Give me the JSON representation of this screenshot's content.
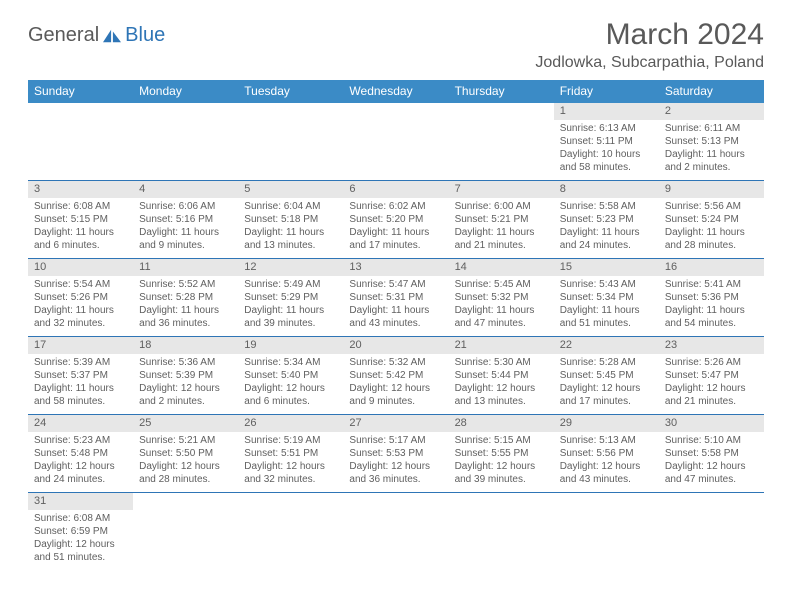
{
  "logo": {
    "part1": "General",
    "part2": "Blue"
  },
  "title": "March 2024",
  "location": "Jodlowka, Subcarpathia, Poland",
  "colors": {
    "header_bg": "#3b8bc6",
    "header_fg": "#ffffff",
    "daynum_bg": "#e7e7e7",
    "text": "#5f5f5f",
    "rule": "#2e75b6",
    "logo_accent": "#2e75b6"
  },
  "weekdays": [
    "Sunday",
    "Monday",
    "Tuesday",
    "Wednesday",
    "Thursday",
    "Friday",
    "Saturday"
  ],
  "weeks": [
    [
      null,
      null,
      null,
      null,
      null,
      {
        "n": "1",
        "sunrise": "Sunrise: 6:13 AM",
        "sunset": "Sunset: 5:11 PM",
        "daylight": "Daylight: 10 hours and 58 minutes."
      },
      {
        "n": "2",
        "sunrise": "Sunrise: 6:11 AM",
        "sunset": "Sunset: 5:13 PM",
        "daylight": "Daylight: 11 hours and 2 minutes."
      }
    ],
    [
      {
        "n": "3",
        "sunrise": "Sunrise: 6:08 AM",
        "sunset": "Sunset: 5:15 PM",
        "daylight": "Daylight: 11 hours and 6 minutes."
      },
      {
        "n": "4",
        "sunrise": "Sunrise: 6:06 AM",
        "sunset": "Sunset: 5:16 PM",
        "daylight": "Daylight: 11 hours and 9 minutes."
      },
      {
        "n": "5",
        "sunrise": "Sunrise: 6:04 AM",
        "sunset": "Sunset: 5:18 PM",
        "daylight": "Daylight: 11 hours and 13 minutes."
      },
      {
        "n": "6",
        "sunrise": "Sunrise: 6:02 AM",
        "sunset": "Sunset: 5:20 PM",
        "daylight": "Daylight: 11 hours and 17 minutes."
      },
      {
        "n": "7",
        "sunrise": "Sunrise: 6:00 AM",
        "sunset": "Sunset: 5:21 PM",
        "daylight": "Daylight: 11 hours and 21 minutes."
      },
      {
        "n": "8",
        "sunrise": "Sunrise: 5:58 AM",
        "sunset": "Sunset: 5:23 PM",
        "daylight": "Daylight: 11 hours and 24 minutes."
      },
      {
        "n": "9",
        "sunrise": "Sunrise: 5:56 AM",
        "sunset": "Sunset: 5:24 PM",
        "daylight": "Daylight: 11 hours and 28 minutes."
      }
    ],
    [
      {
        "n": "10",
        "sunrise": "Sunrise: 5:54 AM",
        "sunset": "Sunset: 5:26 PM",
        "daylight": "Daylight: 11 hours and 32 minutes."
      },
      {
        "n": "11",
        "sunrise": "Sunrise: 5:52 AM",
        "sunset": "Sunset: 5:28 PM",
        "daylight": "Daylight: 11 hours and 36 minutes."
      },
      {
        "n": "12",
        "sunrise": "Sunrise: 5:49 AM",
        "sunset": "Sunset: 5:29 PM",
        "daylight": "Daylight: 11 hours and 39 minutes."
      },
      {
        "n": "13",
        "sunrise": "Sunrise: 5:47 AM",
        "sunset": "Sunset: 5:31 PM",
        "daylight": "Daylight: 11 hours and 43 minutes."
      },
      {
        "n": "14",
        "sunrise": "Sunrise: 5:45 AM",
        "sunset": "Sunset: 5:32 PM",
        "daylight": "Daylight: 11 hours and 47 minutes."
      },
      {
        "n": "15",
        "sunrise": "Sunrise: 5:43 AM",
        "sunset": "Sunset: 5:34 PM",
        "daylight": "Daylight: 11 hours and 51 minutes."
      },
      {
        "n": "16",
        "sunrise": "Sunrise: 5:41 AM",
        "sunset": "Sunset: 5:36 PM",
        "daylight": "Daylight: 11 hours and 54 minutes."
      }
    ],
    [
      {
        "n": "17",
        "sunrise": "Sunrise: 5:39 AM",
        "sunset": "Sunset: 5:37 PM",
        "daylight": "Daylight: 11 hours and 58 minutes."
      },
      {
        "n": "18",
        "sunrise": "Sunrise: 5:36 AM",
        "sunset": "Sunset: 5:39 PM",
        "daylight": "Daylight: 12 hours and 2 minutes."
      },
      {
        "n": "19",
        "sunrise": "Sunrise: 5:34 AM",
        "sunset": "Sunset: 5:40 PM",
        "daylight": "Daylight: 12 hours and 6 minutes."
      },
      {
        "n": "20",
        "sunrise": "Sunrise: 5:32 AM",
        "sunset": "Sunset: 5:42 PM",
        "daylight": "Daylight: 12 hours and 9 minutes."
      },
      {
        "n": "21",
        "sunrise": "Sunrise: 5:30 AM",
        "sunset": "Sunset: 5:44 PM",
        "daylight": "Daylight: 12 hours and 13 minutes."
      },
      {
        "n": "22",
        "sunrise": "Sunrise: 5:28 AM",
        "sunset": "Sunset: 5:45 PM",
        "daylight": "Daylight: 12 hours and 17 minutes."
      },
      {
        "n": "23",
        "sunrise": "Sunrise: 5:26 AM",
        "sunset": "Sunset: 5:47 PM",
        "daylight": "Daylight: 12 hours and 21 minutes."
      }
    ],
    [
      {
        "n": "24",
        "sunrise": "Sunrise: 5:23 AM",
        "sunset": "Sunset: 5:48 PM",
        "daylight": "Daylight: 12 hours and 24 minutes."
      },
      {
        "n": "25",
        "sunrise": "Sunrise: 5:21 AM",
        "sunset": "Sunset: 5:50 PM",
        "daylight": "Daylight: 12 hours and 28 minutes."
      },
      {
        "n": "26",
        "sunrise": "Sunrise: 5:19 AM",
        "sunset": "Sunset: 5:51 PM",
        "daylight": "Daylight: 12 hours and 32 minutes."
      },
      {
        "n": "27",
        "sunrise": "Sunrise: 5:17 AM",
        "sunset": "Sunset: 5:53 PM",
        "daylight": "Daylight: 12 hours and 36 minutes."
      },
      {
        "n": "28",
        "sunrise": "Sunrise: 5:15 AM",
        "sunset": "Sunset: 5:55 PM",
        "daylight": "Daylight: 12 hours and 39 minutes."
      },
      {
        "n": "29",
        "sunrise": "Sunrise: 5:13 AM",
        "sunset": "Sunset: 5:56 PM",
        "daylight": "Daylight: 12 hours and 43 minutes."
      },
      {
        "n": "30",
        "sunrise": "Sunrise: 5:10 AM",
        "sunset": "Sunset: 5:58 PM",
        "daylight": "Daylight: 12 hours and 47 minutes."
      }
    ],
    [
      {
        "n": "31",
        "sunrise": "Sunrise: 6:08 AM",
        "sunset": "Sunset: 6:59 PM",
        "daylight": "Daylight: 12 hours and 51 minutes."
      },
      null,
      null,
      null,
      null,
      null,
      null
    ]
  ]
}
